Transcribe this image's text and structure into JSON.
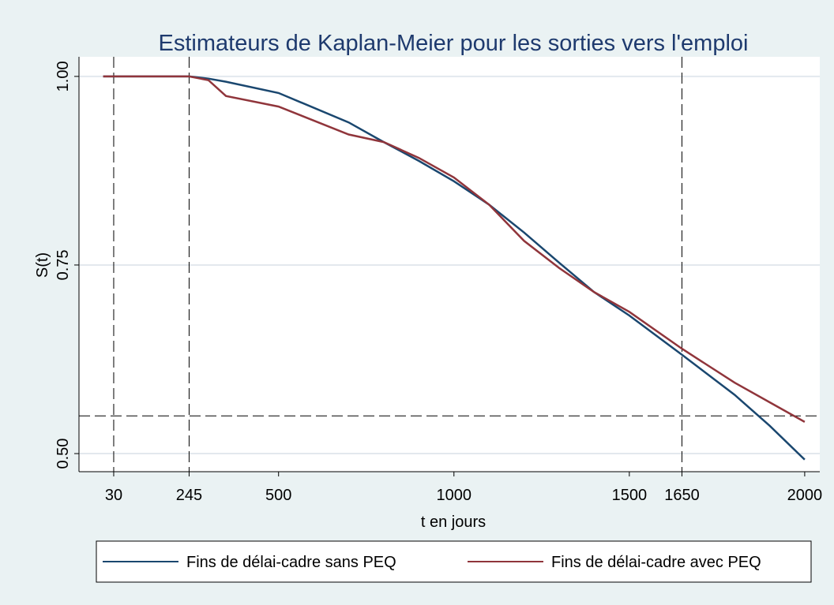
{
  "chart_data": {
    "type": "line",
    "title": "Estimateurs de Kaplan-Meier pour les sorties vers l'emploi",
    "xlabel": "t en jours",
    "ylabel": "S(t)",
    "x": [
      0,
      245,
      300,
      350,
      500,
      700,
      800,
      900,
      1000,
      1100,
      1200,
      1300,
      1400,
      1500,
      1650,
      1800,
      1900,
      2000
    ],
    "series": [
      {
        "name": "Fins de délai-cadre sans PEQ",
        "color": "#1a476f",
        "values": [
          1.0,
          1.0,
          0.997,
          0.993,
          0.978,
          0.939,
          0.913,
          0.888,
          0.861,
          0.83,
          0.793,
          0.753,
          0.714,
          0.683,
          0.631,
          0.578,
          0.537,
          0.492
        ]
      },
      {
        "name": "Fins de délai-cadre avec PEQ",
        "color": "#90353b",
        "values": [
          1.0,
          1.0,
          0.995,
          0.974,
          0.96,
          0.923,
          0.913,
          0.892,
          0.866,
          0.83,
          0.782,
          0.746,
          0.714,
          0.688,
          0.639,
          0.594,
          0.568,
          0.542
        ]
      }
    ],
    "xlim": [
      -69,
      2043
    ],
    "ylim": [
      0.476,
      1.026
    ],
    "xticks": [
      30,
      245,
      500,
      1000,
      1500,
      1650,
      2000
    ],
    "yticks": [
      {
        "value": 1,
        "label": "1.00"
      },
      {
        "value": 0.75,
        "label": "0.75"
      },
      {
        "value": 0.5,
        "label": "0.50"
      }
    ],
    "xlines": [
      30,
      245,
      1650
    ],
    "ylines": [
      0.55
    ],
    "grid": true
  }
}
